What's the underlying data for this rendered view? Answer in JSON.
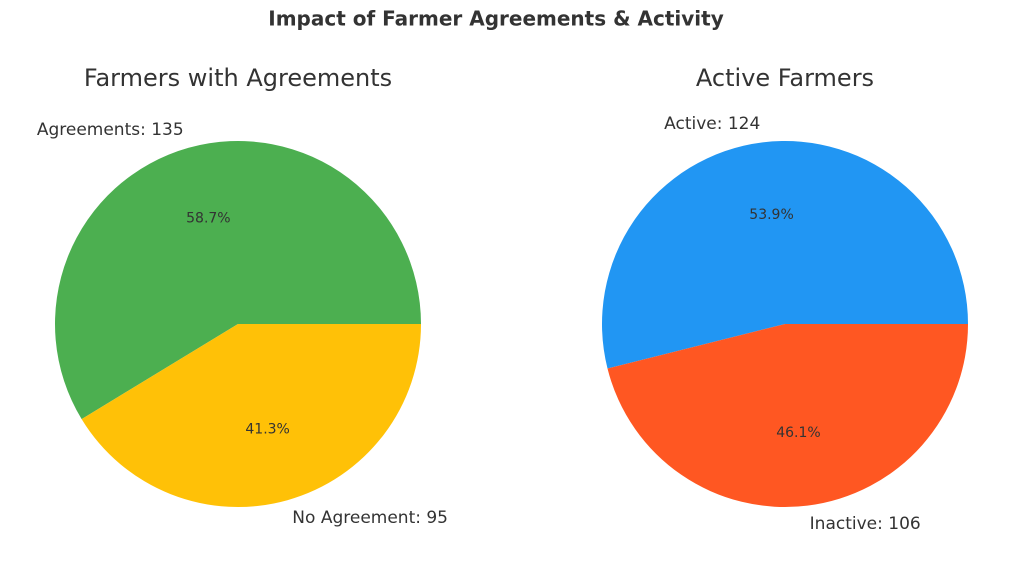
{
  "title": "Impact of Farmer Agreements & Activity",
  "chart_data": [
    {
      "type": "pie",
      "title": "Farmers with Agreements",
      "categories": [
        "Agreements",
        "No Agreement"
      ],
      "labels": [
        "Agreements: 135",
        "No Agreement: 95"
      ],
      "values": [
        135,
        95
      ],
      "pct_labels": [
        "58.7%",
        "41.3%"
      ],
      "colors": [
        "#4caf50",
        "#ffc107"
      ]
    },
    {
      "type": "pie",
      "title": "Active Farmers",
      "categories": [
        "Active",
        "Inactive"
      ],
      "labels": [
        "Active: 124",
        "Inactive: 106"
      ],
      "values": [
        124,
        106
      ],
      "pct_labels": [
        "53.9%",
        "46.1%"
      ],
      "colors": [
        "#2196f3",
        "#ff5722"
      ]
    }
  ]
}
